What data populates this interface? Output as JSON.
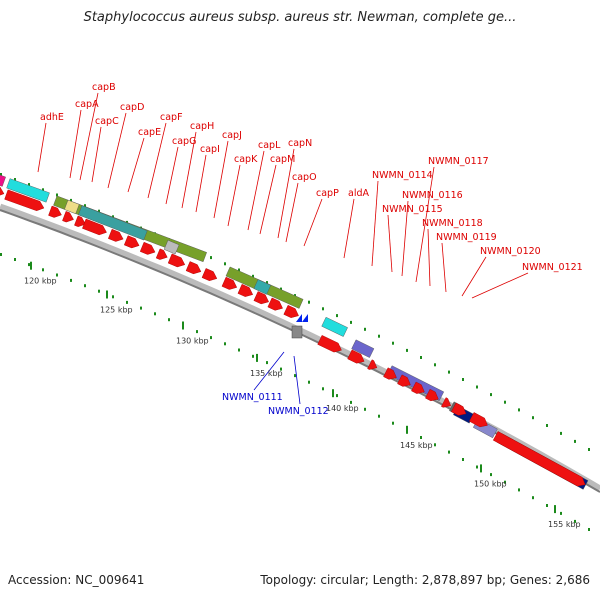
{
  "title": "Staphylococcus aureus subsp. aureus str. Newman, complete ge...",
  "footer": {
    "accession": "Accession: NC_009641",
    "summary": "Topology: circular; Length: 2,878,897 bp; Genes: 2,686"
  },
  "colors": {
    "gene_arrow": "#ee1111",
    "label_top": "#dd0000",
    "label_bottom": "#0000cc",
    "cap_cluster": "#77a02a",
    "cyan_feature": "#22dddd",
    "purple_feature": "#6b66cc",
    "navy_feature": "#001a80",
    "backbone": "#999999",
    "tick": "#1b8a1b"
  },
  "scale": {
    "tick_labels": [
      {
        "kb": 120,
        "label": "120 kbp"
      },
      {
        "kb": 125,
        "label": "125 kbp"
      },
      {
        "kb": 130,
        "label": "130 kbp"
      },
      {
        "kb": 135,
        "label": "135 kbp"
      },
      {
        "kb": 140,
        "label": "140 kbp"
      },
      {
        "kb": 145,
        "label": "145 kbp"
      },
      {
        "kb": 150,
        "label": "150 kbp"
      },
      {
        "kb": 155,
        "label": "155 kbp"
      }
    ]
  },
  "labels_top": [
    "adhE",
    "capA",
    "capB",
    "capC",
    "capD",
    "capE",
    "capF",
    "capG",
    "capH",
    "capI",
    "capJ",
    "capK",
    "capL",
    "capM",
    "capN",
    "capO",
    "capP",
    "aldA",
    "NWMN_0114",
    "NWMN_0115",
    "NWMN_0116",
    "NWMN_0117",
    "NWMN_0118",
    "NWMN_0119",
    "NWMN_0120",
    "NWMN_0121"
  ],
  "labels_bottom": [
    "NWMN_0111",
    "NWMN_0112"
  ]
}
